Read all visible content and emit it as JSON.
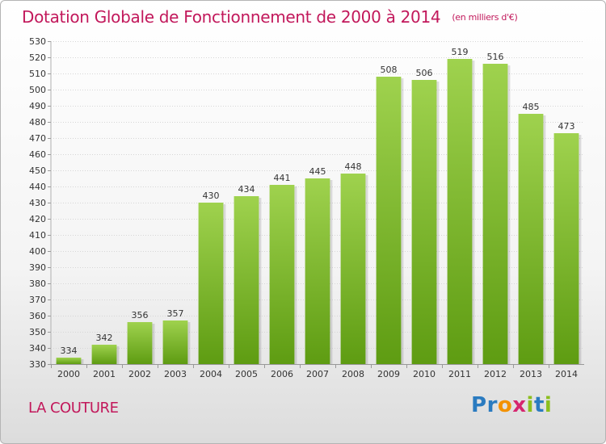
{
  "header": {
    "title": "Dotation Globale de Fonctionnement de 2000 à 2014",
    "subtitle": "(en milliers d'€)"
  },
  "footer": {
    "commune": "LA COUTURE",
    "logo": [
      "P",
      "r",
      "o",
      "x",
      "i",
      "t",
      "i"
    ]
  },
  "colors": {
    "title": "#c2185b",
    "bar_top": "#9fd24e",
    "bar_bottom": "#5e9c12"
  },
  "chart_data": {
    "type": "bar",
    "title": "Dotation Globale de Fonctionnement de 2000 à 2014",
    "subtitle": "(en milliers d'€)",
    "categories": [
      "2000",
      "2001",
      "2002",
      "2003",
      "2004",
      "2005",
      "2006",
      "2007",
      "2008",
      "2009",
      "2010",
      "2011",
      "2012",
      "2013",
      "2014"
    ],
    "values": [
      334,
      342,
      356,
      357,
      430,
      434,
      441,
      445,
      448,
      508,
      506,
      519,
      516,
      485,
      473
    ],
    "ylim": [
      330,
      530
    ],
    "ytick_step": 10,
    "grid": true,
    "legend": "none"
  }
}
